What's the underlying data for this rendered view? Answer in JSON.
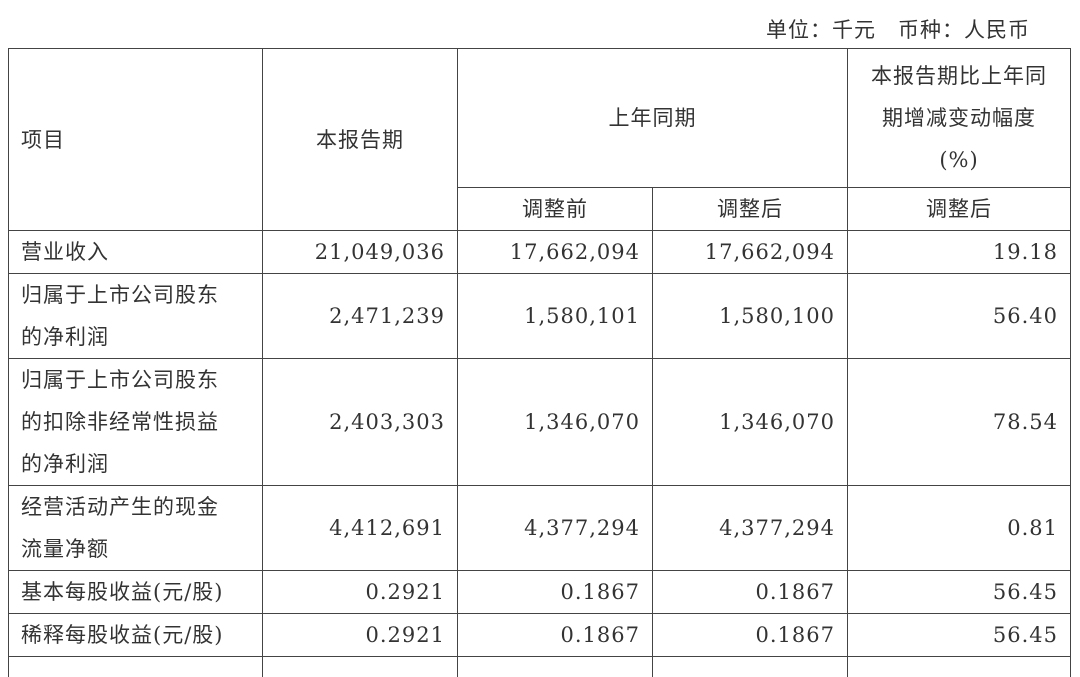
{
  "unit_note": "单位：千元　币种：人民币",
  "header": {
    "item": "项目",
    "current": "本报告期",
    "prior": "上年同期",
    "change": "本报告期比上年同\n期增减变动幅度\n(%)",
    "before_adj": "调整前",
    "after_adj": "调整后",
    "change_after_adj": "调整后"
  },
  "rows": [
    {
      "label": "营业收入",
      "current": "21,049,036",
      "before": "17,662,094",
      "after": "17,662,094",
      "change": "19.18"
    },
    {
      "label": "归属于上市公司股东\n的净利润",
      "current": "2,471,239",
      "before": "1,580,101",
      "after": "1,580,100",
      "change": "56.40"
    },
    {
      "label": "归属于上市公司股东\n的扣除非经常性损益\n的净利润",
      "current": "2,403,303",
      "before": "1,346,070",
      "after": "1,346,070",
      "change": "78.54"
    },
    {
      "label": "经营活动产生的现金\n流量净额",
      "current": "4,412,691",
      "before": "4,377,294",
      "after": "4,377,294",
      "change": "0.81"
    },
    {
      "label": "基本每股收益(元/股)",
      "current": "0.2921",
      "before": "0.1867",
      "after": "0.1867",
      "change": "56.45"
    },
    {
      "label": "稀释每股收益(元/股)",
      "current": "0.2921",
      "before": "0.1867",
      "after": "0.1867",
      "change": "56.45"
    }
  ]
}
